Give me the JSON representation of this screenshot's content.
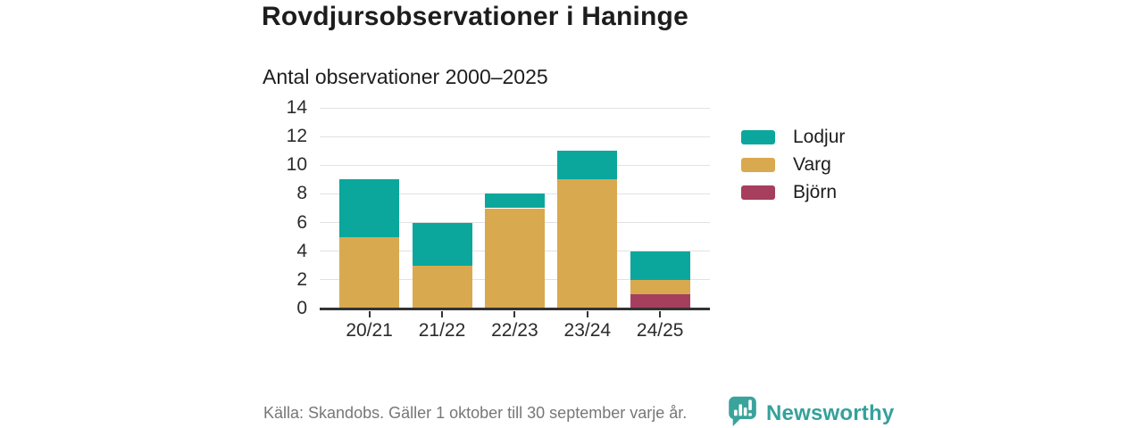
{
  "header": {
    "title": "Rovdjursobservationer i Haninge",
    "subtitle": "Antal observationer 2000–2025"
  },
  "chart_data": {
    "type": "bar",
    "stacked": true,
    "title": "Rovdjursobservationer i Haninge",
    "subtitle": "Antal observationer 2000–2025",
    "categories": [
      "20/21",
      "21/22",
      "22/23",
      "23/24",
      "24/25"
    ],
    "series": [
      {
        "name": "Lodjur",
        "color": "#0ba79c",
        "values": [
          4,
          3,
          1,
          2,
          2
        ]
      },
      {
        "name": "Varg",
        "color": "#d9a94f",
        "values": [
          5,
          3,
          7,
          9,
          1
        ]
      },
      {
        "name": "Björn",
        "color": "#a63f5e",
        "values": [
          0,
          0,
          0,
          0,
          1
        ]
      }
    ],
    "stack_order_bottom_to_top": [
      "Björn",
      "Varg",
      "Lodjur"
    ],
    "ylim": [
      0,
      14
    ],
    "yticks": [
      0,
      2,
      4,
      6,
      8,
      10,
      12,
      14
    ],
    "grid": "horizontal",
    "legend_position": "right"
  },
  "footer": {
    "source": "Källa: Skandobs. Gäller 1 oktober till 30 september varje år.",
    "brand": "Newsworthy"
  },
  "colors": {
    "lodjur": "#0ba79c",
    "varg": "#d9a94f",
    "bjorn": "#a63f5e",
    "axis": "#333333",
    "gridline": "#e2e2e2",
    "text_dark": "#1d1d1d",
    "source_text": "#777777",
    "brand_teal": "#35a19b"
  }
}
